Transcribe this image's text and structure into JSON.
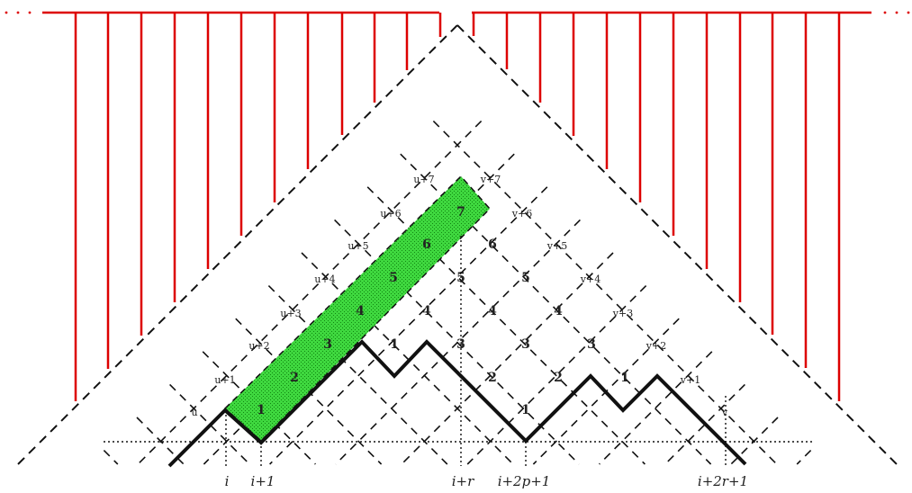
{
  "region_labels": {
    "u_side": [
      "u",
      "u+1",
      "u+2",
      "u+3",
      "u+4",
      "u+5",
      "u+6",
      "u+7"
    ],
    "v_side": [
      "v",
      "v+1",
      "v+2",
      "v+3",
      "v+4",
      "v+5",
      "v+6",
      "v+7"
    ]
  },
  "cell_numbers": {
    "green_strip": [
      "1",
      "2",
      "3",
      "4",
      "5",
      "6",
      "7"
    ],
    "row_1": [
      "1",
      "1"
    ],
    "row_2": [
      "2",
      "2"
    ],
    "row_3": [
      "1",
      "3",
      "3",
      "3"
    ],
    "row_4": [
      "4",
      "4",
      "4"
    ],
    "row_5": [
      "5",
      "5"
    ],
    "row_6": [
      "6"
    ]
  },
  "x_axis_labels": [
    "i",
    "i+1",
    "i+r",
    "i+2p+1",
    "i+2r+1"
  ],
  "colors": {
    "vertical_lines": "#dd0000",
    "highlight_strip": "#22cc22",
    "path": "#111111",
    "grid": "#111111"
  }
}
